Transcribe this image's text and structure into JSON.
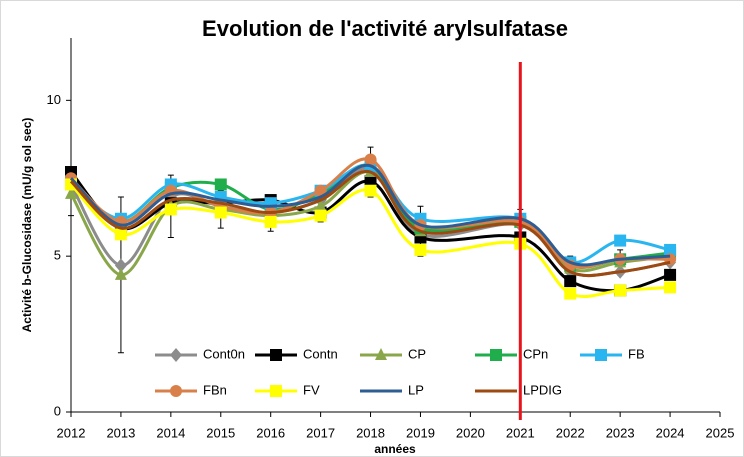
{
  "chart_data": {
    "type": "line",
    "title": "Evolution de l'activité arylsulfatase",
    "x_label": "années",
    "y_label": "Activité b-Glucosidase (mU/g sol sec)",
    "x": [
      2012,
      2013,
      2014,
      2015,
      2016,
      2017,
      2018,
      2019,
      2021,
      2022,
      2023,
      2024
    ],
    "xlim": [
      2012,
      2025
    ],
    "xticks": [
      2012,
      2013,
      2014,
      2015,
      2016,
      2017,
      2018,
      2019,
      2020,
      2021,
      2022,
      2023,
      2024,
      2025
    ],
    "ylim": [
      0,
      12
    ],
    "yticks": [
      0,
      5,
      10
    ],
    "grid": false,
    "smooth": true,
    "legend_position": "lower center",
    "vline": {
      "x": 2021,
      "color": "#e8141b"
    },
    "series": [
      {
        "name": "Cont0n",
        "color": "#8c8c8c",
        "marker": "diamond",
        "values": [
          7.3,
          4.7,
          6.9,
          6.6,
          6.4,
          6.8,
          7.8,
          5.7,
          6.0,
          4.5,
          4.5,
          4.8
        ]
      },
      {
        "name": "Contn",
        "color": "#000000",
        "marker": "square",
        "values": [
          7.7,
          5.9,
          6.7,
          6.7,
          6.8,
          6.4,
          7.4,
          5.6,
          5.6,
          4.2,
          3.9,
          4.4
        ]
      },
      {
        "name": "CP",
        "color": "#8aa64a",
        "marker": "triangle",
        "values": [
          7.0,
          4.4,
          6.6,
          6.5,
          6.3,
          6.6,
          7.7,
          5.8,
          6.1,
          4.6,
          4.8,
          5.0
        ],
        "errors": [
          0.7,
          2.5,
          1.0,
          0.6,
          0.5,
          0.5,
          0.8,
          0.8,
          0.4,
          0.4,
          0.4,
          0.3
        ]
      },
      {
        "name": "CPn",
        "color": "#1fae4b",
        "marker": "square",
        "values": [
          7.4,
          6.1,
          7.2,
          7.3,
          6.5,
          7.0,
          7.9,
          5.9,
          6.1,
          4.7,
          4.9,
          5.1
        ]
      },
      {
        "name": "FB",
        "color": "#29b6f0",
        "marker": "square",
        "values": [
          7.3,
          6.2,
          7.3,
          6.9,
          6.7,
          7.1,
          7.9,
          6.2,
          6.2,
          4.8,
          5.5,
          5.2
        ]
      },
      {
        "name": "FBn",
        "color": "#d9804a",
        "marker": "circle",
        "values": [
          7.5,
          6.1,
          7.1,
          6.6,
          6.4,
          7.1,
          8.1,
          6.0,
          6.1,
          4.7,
          4.9,
          4.9
        ]
      },
      {
        "name": "FV",
        "color": "#ffff00",
        "marker": "square",
        "values": [
          7.3,
          5.7,
          6.5,
          6.4,
          6.1,
          6.3,
          7.1,
          5.2,
          5.4,
          3.8,
          3.9,
          4.0
        ]
      },
      {
        "name": "LP",
        "color": "#2e5d93",
        "marker": "none",
        "values": [
          7.5,
          6.0,
          7.0,
          6.8,
          6.6,
          6.9,
          7.9,
          6.0,
          6.2,
          4.8,
          4.9,
          5.0
        ]
      },
      {
        "name": "LPDIG",
        "color": "#9c4a12",
        "marker": "none",
        "values": [
          7.4,
          5.9,
          6.8,
          6.7,
          6.4,
          6.8,
          7.7,
          5.8,
          6.0,
          4.5,
          4.5,
          4.8
        ]
      }
    ]
  }
}
